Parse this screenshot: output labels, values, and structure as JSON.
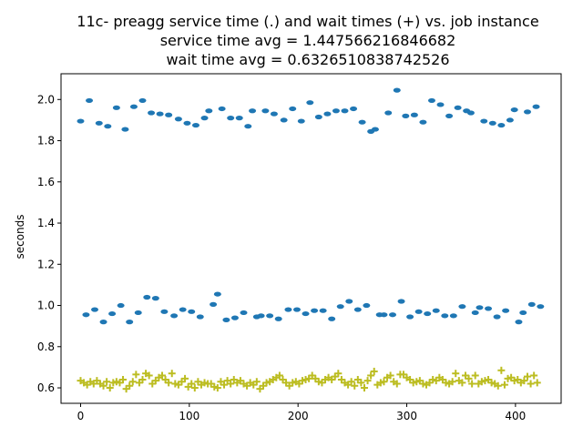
{
  "chart_data": {
    "type": "scatter",
    "title_lines": [
      "11c- preagg service time (.) and wait times (+) vs. job instance",
      "service time avg = 1.447566216846682",
      "wait time avg = 0.6326510838742526"
    ],
    "xlabel": "",
    "ylabel": "seconds",
    "xlim": [
      -18,
      442
    ],
    "ylim": [
      0.525,
      2.125
    ],
    "xticks": [
      0,
      100,
      200,
      300,
      400
    ],
    "yticks": [
      0.6,
      0.8,
      1.0,
      1.2,
      1.4,
      1.6,
      1.8,
      2.0
    ],
    "ytick_labels": [
      "0.6",
      "0.8",
      "1.0",
      "1.2",
      "1.4",
      "1.6",
      "1.8",
      "2.0"
    ],
    "series": [
      {
        "marker": "dot",
        "color": "#1f77b4",
        "points": [
          [
            0,
            1.895
          ],
          [
            5,
            0.955
          ],
          [
            8,
            1.995
          ],
          [
            13,
            0.98
          ],
          [
            17,
            1.885
          ],
          [
            21,
            0.92
          ],
          [
            25,
            1.87
          ],
          [
            29,
            0.96
          ],
          [
            33,
            1.96
          ],
          [
            37,
            1.0
          ],
          [
            41,
            1.855
          ],
          [
            45,
            0.92
          ],
          [
            49,
            1.965
          ],
          [
            53,
            0.965
          ],
          [
            57,
            1.995
          ],
          [
            61,
            1.04
          ],
          [
            65,
            1.935
          ],
          [
            69,
            1.035
          ],
          [
            73,
            1.93
          ],
          [
            77,
            0.97
          ],
          [
            81,
            1.925
          ],
          [
            86,
            0.95
          ],
          [
            90,
            1.905
          ],
          [
            94,
            0.98
          ],
          [
            98,
            1.885
          ],
          [
            102,
            0.97
          ],
          [
            106,
            1.875
          ],
          [
            110,
            0.945
          ],
          [
            114,
            1.91
          ],
          [
            118,
            1.945
          ],
          [
            122,
            1.005
          ],
          [
            126,
            1.055
          ],
          [
            130,
            1.955
          ],
          [
            134,
            0.93
          ],
          [
            138,
            1.91
          ],
          [
            142,
            0.94
          ],
          [
            146,
            1.91
          ],
          [
            150,
            0.965
          ],
          [
            154,
            1.87
          ],
          [
            158,
            1.945
          ],
          [
            162,
            0.945
          ],
          [
            166,
            0.95
          ],
          [
            170,
            1.945
          ],
          [
            174,
            0.95
          ],
          [
            178,
            1.93
          ],
          [
            182,
            0.935
          ],
          [
            187,
            1.9
          ],
          [
            191,
            0.98
          ],
          [
            195,
            1.955
          ],
          [
            199,
            0.98
          ],
          [
            203,
            1.895
          ],
          [
            207,
            0.96
          ],
          [
            211,
            1.985
          ],
          [
            215,
            0.975
          ],
          [
            219,
            1.915
          ],
          [
            223,
            0.975
          ],
          [
            227,
            1.93
          ],
          [
            231,
            0.935
          ],
          [
            235,
            1.945
          ],
          [
            239,
            0.995
          ],
          [
            243,
            1.945
          ],
          [
            247,
            1.02
          ],
          [
            251,
            1.955
          ],
          [
            255,
            0.98
          ],
          [
            259,
            1.89
          ],
          [
            263,
            1.0
          ],
          [
            267,
            1.845
          ],
          [
            271,
            1.855
          ],
          [
            275,
            0.955
          ],
          [
            279,
            0.955
          ],
          [
            283,
            1.935
          ],
          [
            287,
            0.955
          ],
          [
            291,
            2.045
          ],
          [
            295,
            1.02
          ],
          [
            299,
            1.92
          ],
          [
            303,
            0.945
          ],
          [
            307,
            1.925
          ],
          [
            311,
            0.97
          ],
          [
            315,
            1.89
          ],
          [
            319,
            0.96
          ],
          [
            323,
            1.995
          ],
          [
            327,
            0.975
          ],
          [
            331,
            1.975
          ],
          [
            335,
            0.95
          ],
          [
            339,
            1.92
          ],
          [
            343,
            0.95
          ],
          [
            347,
            1.96
          ],
          [
            351,
            0.995
          ],
          [
            355,
            1.945
          ],
          [
            359,
            1.935
          ],
          [
            363,
            0.965
          ],
          [
            367,
            0.99
          ],
          [
            371,
            1.895
          ],
          [
            375,
            0.985
          ],
          [
            379,
            1.885
          ],
          [
            383,
            0.945
          ],
          [
            387,
            1.875
          ],
          [
            391,
            0.975
          ],
          [
            395,
            1.9
          ],
          [
            399,
            1.95
          ],
          [
            403,
            0.92
          ],
          [
            407,
            0.965
          ],
          [
            411,
            1.94
          ],
          [
            415,
            1.005
          ],
          [
            419,
            1.965
          ],
          [
            423,
            0.995
          ]
        ]
      },
      {
        "marker": "plus",
        "color": "#bcbd22",
        "points": [
          [
            0,
            0.635
          ],
          [
            3,
            0.625
          ],
          [
            6,
            0.615
          ],
          [
            9,
            0.63
          ],
          [
            12,
            0.62
          ],
          [
            15,
            0.635
          ],
          [
            18,
            0.62
          ],
          [
            21,
            0.61
          ],
          [
            24,
            0.63
          ],
          [
            27,
            0.6
          ],
          [
            30,
            0.625
          ],
          [
            33,
            0.63
          ],
          [
            36,
            0.625
          ],
          [
            39,
            0.64
          ],
          [
            42,
            0.595
          ],
          [
            45,
            0.61
          ],
          [
            48,
            0.63
          ],
          [
            51,
            0.665
          ],
          [
            54,
            0.625
          ],
          [
            57,
            0.64
          ],
          [
            60,
            0.67
          ],
          [
            63,
            0.66
          ],
          [
            66,
            0.62
          ],
          [
            69,
            0.635
          ],
          [
            72,
            0.65
          ],
          [
            75,
            0.66
          ],
          [
            78,
            0.64
          ],
          [
            81,
            0.625
          ],
          [
            84,
            0.67
          ],
          [
            87,
            0.62
          ],
          [
            90,
            0.615
          ],
          [
            93,
            0.63
          ],
          [
            96,
            0.645
          ],
          [
            99,
            0.605
          ],
          [
            102,
            0.62
          ],
          [
            105,
            0.6
          ],
          [
            108,
            0.63
          ],
          [
            111,
            0.615
          ],
          [
            114,
            0.625
          ],
          [
            117,
            0.62
          ],
          [
            120,
            0.62
          ],
          [
            123,
            0.605
          ],
          [
            126,
            0.6
          ],
          [
            129,
            0.63
          ],
          [
            132,
            0.615
          ],
          [
            135,
            0.635
          ],
          [
            138,
            0.62
          ],
          [
            141,
            0.64
          ],
          [
            144,
            0.625
          ],
          [
            147,
            0.635
          ],
          [
            150,
            0.62
          ],
          [
            153,
            0.61
          ],
          [
            156,
            0.625
          ],
          [
            159,
            0.615
          ],
          [
            162,
            0.63
          ],
          [
            165,
            0.595
          ],
          [
            168,
            0.61
          ],
          [
            171,
            0.625
          ],
          [
            174,
            0.63
          ],
          [
            177,
            0.64
          ],
          [
            180,
            0.65
          ],
          [
            183,
            0.66
          ],
          [
            186,
            0.64
          ],
          [
            189,
            0.625
          ],
          [
            192,
            0.61
          ],
          [
            195,
            0.625
          ],
          [
            198,
            0.63
          ],
          [
            201,
            0.62
          ],
          [
            204,
            0.635
          ],
          [
            207,
            0.64
          ],
          [
            210,
            0.645
          ],
          [
            213,
            0.66
          ],
          [
            216,
            0.645
          ],
          [
            219,
            0.63
          ],
          [
            222,
            0.625
          ],
          [
            225,
            0.64
          ],
          [
            228,
            0.65
          ],
          [
            231,
            0.64
          ],
          [
            234,
            0.655
          ],
          [
            237,
            0.67
          ],
          [
            240,
            0.64
          ],
          [
            243,
            0.625
          ],
          [
            246,
            0.615
          ],
          [
            249,
            0.63
          ],
          [
            252,
            0.61
          ],
          [
            255,
            0.64
          ],
          [
            258,
            0.625
          ],
          [
            261,
            0.6
          ],
          [
            264,
            0.635
          ],
          [
            267,
            0.66
          ],
          [
            270,
            0.68
          ],
          [
            273,
            0.615
          ],
          [
            276,
            0.625
          ],
          [
            279,
            0.63
          ],
          [
            282,
            0.65
          ],
          [
            285,
            0.66
          ],
          [
            288,
            0.63
          ],
          [
            291,
            0.62
          ],
          [
            294,
            0.665
          ],
          [
            297,
            0.665
          ],
          [
            300,
            0.65
          ],
          [
            303,
            0.64
          ],
          [
            306,
            0.625
          ],
          [
            309,
            0.63
          ],
          [
            312,
            0.635
          ],
          [
            315,
            0.62
          ],
          [
            318,
            0.615
          ],
          [
            321,
            0.625
          ],
          [
            324,
            0.64
          ],
          [
            327,
            0.635
          ],
          [
            330,
            0.65
          ],
          [
            333,
            0.64
          ],
          [
            336,
            0.625
          ],
          [
            339,
            0.62
          ],
          [
            342,
            0.63
          ],
          [
            345,
            0.67
          ],
          [
            348,
            0.635
          ],
          [
            351,
            0.625
          ],
          [
            354,
            0.66
          ],
          [
            357,
            0.645
          ],
          [
            360,
            0.62
          ],
          [
            363,
            0.66
          ],
          [
            366,
            0.62
          ],
          [
            369,
            0.63
          ],
          [
            372,
            0.635
          ],
          [
            375,
            0.64
          ],
          [
            378,
            0.625
          ],
          [
            381,
            0.62
          ],
          [
            384,
            0.61
          ],
          [
            387,
            0.685
          ],
          [
            390,
            0.615
          ],
          [
            393,
            0.645
          ],
          [
            396,
            0.65
          ],
          [
            399,
            0.635
          ],
          [
            402,
            0.64
          ],
          [
            405,
            0.625
          ],
          [
            408,
            0.635
          ],
          [
            411,
            0.655
          ],
          [
            414,
            0.62
          ],
          [
            417,
            0.66
          ],
          [
            420,
            0.625
          ]
        ]
      }
    ]
  }
}
